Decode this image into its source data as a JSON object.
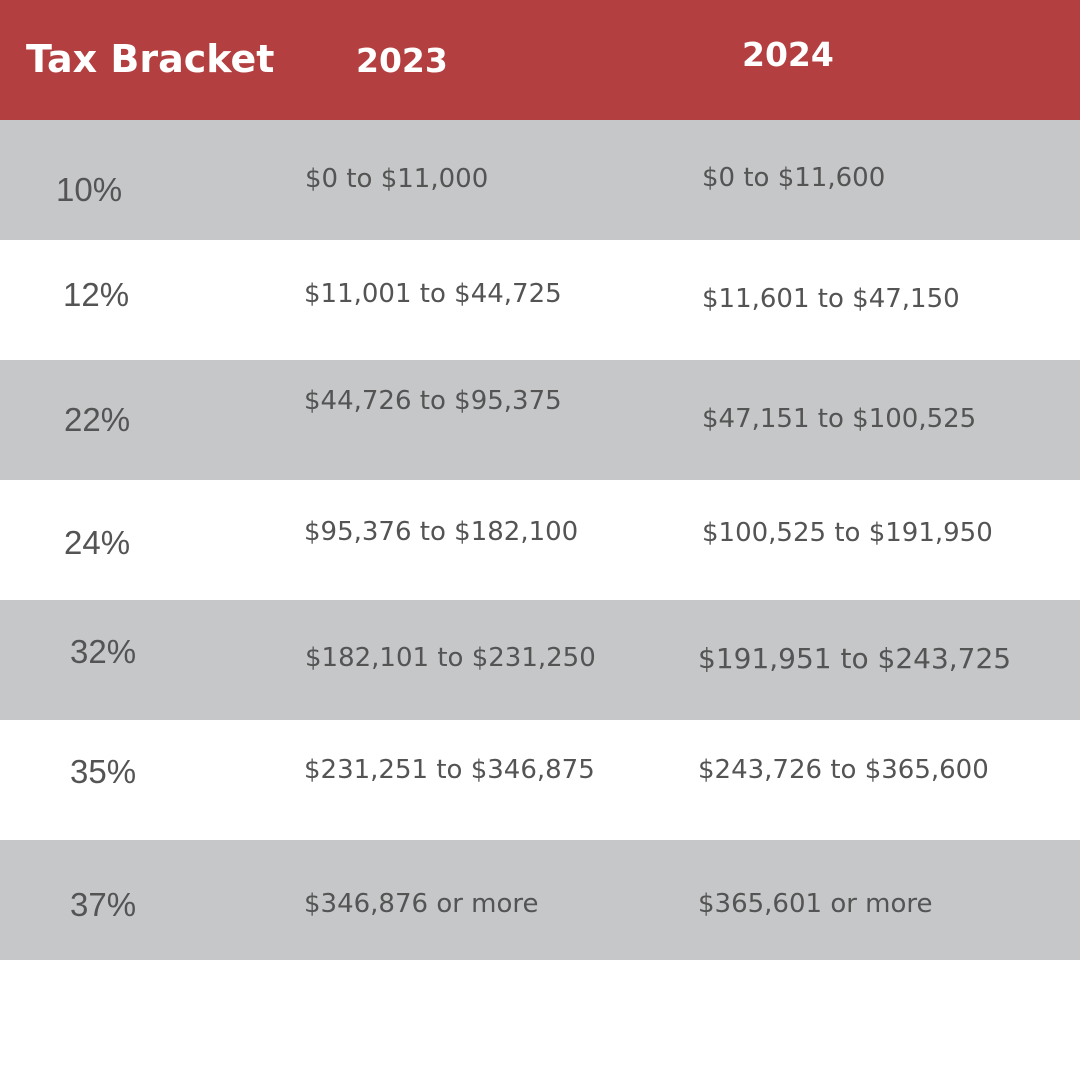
{
  "colors": {
    "header_background": "#b33f40",
    "header_text": "#ffffff",
    "shaded_row": "#c6c7c9",
    "plain_row": "#ffffff",
    "body_text": "#545454"
  },
  "header": {
    "bracket": "Tax Bracket",
    "year_2023": "2023",
    "year_2024": "2024"
  },
  "chart_data": {
    "type": "table",
    "columns": [
      "Tax Bracket",
      "2023",
      "2024"
    ],
    "rows": [
      {
        "rate": "10%",
        "y2023": "$0 to $11,000",
        "y2024": "$0 to $11,600"
      },
      {
        "rate": "12%",
        "y2023": "$11,001 to $44,725",
        "y2024": "$11,601 to $47,150"
      },
      {
        "rate": "22%",
        "y2023": "$44,726 to $95,375",
        "y2024": "$47,151 to $100,525"
      },
      {
        "rate": "24%",
        "y2023": "$95,376 to $182,100",
        "y2024": "$100,525 to $191,950"
      },
      {
        "rate": "32%",
        "y2023": "$182,101 to $231,250",
        "y2024": "$191,951 to $243,725"
      },
      {
        "rate": "35%",
        "y2023": "$231,251 to $346,875",
        "y2024": "$243,726 to $365,600"
      },
      {
        "rate": "37%",
        "y2023": "$346,876 or more",
        "y2024": "$365,601 or more"
      }
    ]
  }
}
